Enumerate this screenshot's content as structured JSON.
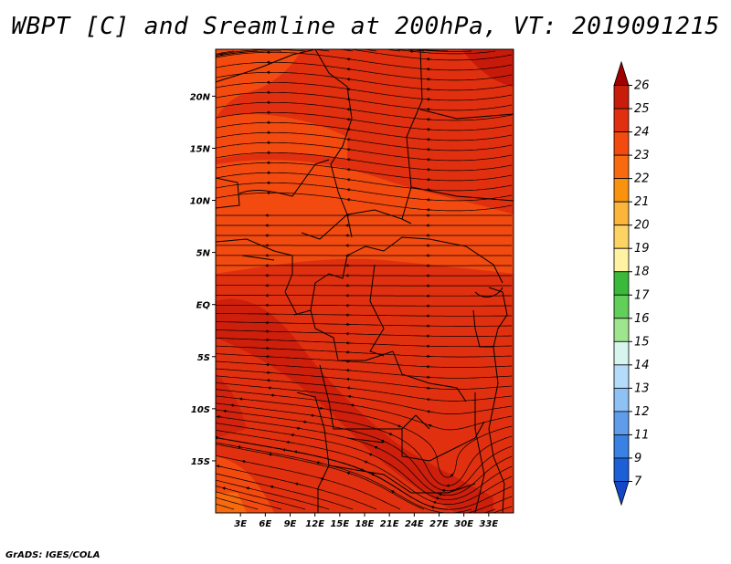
{
  "title": "WBPT [C] and Sreamline at 200hPa, VT: 2019091215",
  "footer": "GrADS: IGES/COLA",
  "map": {
    "lon_range": [
      0,
      36
    ],
    "lat_range": [
      -20,
      24.5
    ],
    "x_ticks": [
      {
        "value": 3,
        "label": "3E"
      },
      {
        "value": 6,
        "label": "6E"
      },
      {
        "value": 9,
        "label": "9E"
      },
      {
        "value": 12,
        "label": "12E"
      },
      {
        "value": 15,
        "label": "15E"
      },
      {
        "value": 18,
        "label": "18E"
      },
      {
        "value": 21,
        "label": "21E"
      },
      {
        "value": 24,
        "label": "24E"
      },
      {
        "value": 27,
        "label": "27E"
      },
      {
        "value": 30,
        "label": "30E"
      },
      {
        "value": 33,
        "label": "33E"
      }
    ],
    "y_ticks": [
      {
        "value": 20,
        "label": "20N"
      },
      {
        "value": 15,
        "label": "15N"
      },
      {
        "value": 10,
        "label": "10N"
      },
      {
        "value": 5,
        "label": "5N"
      },
      {
        "value": 0,
        "label": "EQ"
      },
      {
        "value": -5,
        "label": "5S"
      },
      {
        "value": -10,
        "label": "10S"
      },
      {
        "value": -15,
        "label": "15S"
      }
    ],
    "field_colors": {
      "c23": "#f24a0f",
      "c24": "#e0300f",
      "c25": "#c71a0b"
    }
  },
  "colorbar": {
    "levels": [
      "26",
      "25",
      "24",
      "23",
      "22",
      "21",
      "20",
      "19",
      "18",
      "17",
      "16",
      "15",
      "14",
      "13",
      "12",
      "11",
      "9",
      "7"
    ],
    "colors": [
      "#a00000",
      "#c81d0b",
      "#e0300f",
      "#f24a0f",
      "#f76b0e",
      "#f9920d",
      "#fbb53b",
      "#fdd463",
      "#fff3a3",
      "#3bb93b",
      "#62cf5b",
      "#9fe58f",
      "#d7f5ee",
      "#b4dcfa",
      "#8ec1f4",
      "#5f9deb",
      "#3b80e3",
      "#1d5fd6",
      "#1447c5"
    ]
  }
}
